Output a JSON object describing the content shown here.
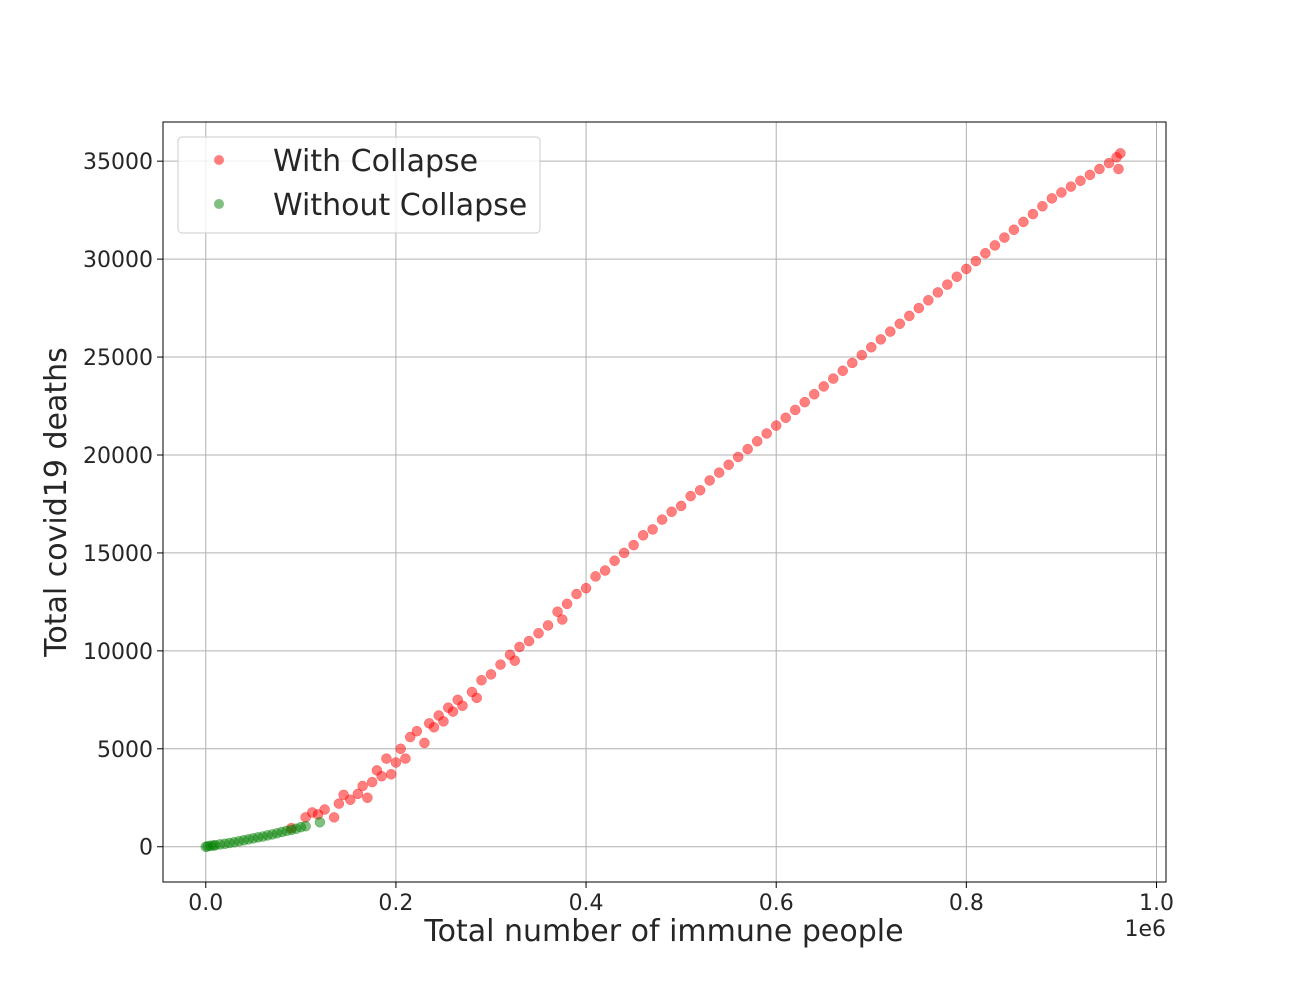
{
  "chart_data": {
    "type": "scatter",
    "title": "",
    "xlabel": "Total number of immune people",
    "ylabel": "Total covid19 deaths",
    "x_offset_label": "1e6",
    "xlim": [
      -0.045,
      1.01
    ],
    "ylim": [
      -1800,
      37000
    ],
    "x_ticks": [
      0.0,
      0.2,
      0.4,
      0.6,
      0.8,
      1.0
    ],
    "x_tick_labels": [
      "0.0",
      "0.2",
      "0.4",
      "0.6",
      "0.8",
      "1.0"
    ],
    "y_ticks": [
      0,
      5000,
      10000,
      15000,
      20000,
      25000,
      30000,
      35000
    ],
    "y_tick_labels": [
      "0",
      "5000",
      "10000",
      "15000",
      "20000",
      "25000",
      "30000",
      "35000"
    ],
    "grid": true,
    "legend_position": "top-left",
    "series": [
      {
        "name": "With Collapse",
        "color": "#ff0000",
        "alpha": 0.5,
        "points": [
          [
            0.09,
            950
          ],
          [
            0.105,
            1500
          ],
          [
            0.112,
            1750
          ],
          [
            0.118,
            1650
          ],
          [
            0.125,
            1900
          ],
          [
            0.135,
            1500
          ],
          [
            0.14,
            2200
          ],
          [
            0.145,
            2650
          ],
          [
            0.152,
            2400
          ],
          [
            0.16,
            2700
          ],
          [
            0.165,
            3100
          ],
          [
            0.17,
            2500
          ],
          [
            0.175,
            3300
          ],
          [
            0.18,
            3900
          ],
          [
            0.185,
            3600
          ],
          [
            0.19,
            4500
          ],
          [
            0.195,
            3700
          ],
          [
            0.2,
            4300
          ],
          [
            0.205,
            5000
          ],
          [
            0.21,
            4500
          ],
          [
            0.215,
            5600
          ],
          [
            0.222,
            5900
          ],
          [
            0.23,
            5300
          ],
          [
            0.235,
            6300
          ],
          [
            0.24,
            6100
          ],
          [
            0.245,
            6700
          ],
          [
            0.25,
            6400
          ],
          [
            0.255,
            7100
          ],
          [
            0.26,
            6900
          ],
          [
            0.265,
            7500
          ],
          [
            0.27,
            7200
          ],
          [
            0.28,
            7900
          ],
          [
            0.285,
            7600
          ],
          [
            0.29,
            8500
          ],
          [
            0.3,
            8800
          ],
          [
            0.31,
            9300
          ],
          [
            0.32,
            9800
          ],
          [
            0.325,
            9500
          ],
          [
            0.33,
            10200
          ],
          [
            0.34,
            10500
          ],
          [
            0.35,
            10900
          ],
          [
            0.36,
            11300
          ],
          [
            0.37,
            12000
          ],
          [
            0.375,
            11600
          ],
          [
            0.38,
            12400
          ],
          [
            0.39,
            12900
          ],
          [
            0.4,
            13200
          ],
          [
            0.41,
            13800
          ],
          [
            0.42,
            14100
          ],
          [
            0.43,
            14600
          ],
          [
            0.44,
            15000
          ],
          [
            0.45,
            15400
          ],
          [
            0.46,
            15900
          ],
          [
            0.47,
            16200
          ],
          [
            0.48,
            16700
          ],
          [
            0.49,
            17100
          ],
          [
            0.5,
            17400
          ],
          [
            0.51,
            17900
          ],
          [
            0.52,
            18200
          ],
          [
            0.53,
            18700
          ],
          [
            0.54,
            19100
          ],
          [
            0.55,
            19500
          ],
          [
            0.56,
            19900
          ],
          [
            0.57,
            20300
          ],
          [
            0.58,
            20700
          ],
          [
            0.59,
            21100
          ],
          [
            0.6,
            21500
          ],
          [
            0.61,
            21900
          ],
          [
            0.62,
            22300
          ],
          [
            0.63,
            22700
          ],
          [
            0.64,
            23100
          ],
          [
            0.65,
            23500
          ],
          [
            0.66,
            23900
          ],
          [
            0.67,
            24300
          ],
          [
            0.68,
            24700
          ],
          [
            0.69,
            25100
          ],
          [
            0.7,
            25500
          ],
          [
            0.71,
            25900
          ],
          [
            0.72,
            26300
          ],
          [
            0.73,
            26700
          ],
          [
            0.74,
            27100
          ],
          [
            0.75,
            27500
          ],
          [
            0.76,
            27900
          ],
          [
            0.77,
            28300
          ],
          [
            0.78,
            28700
          ],
          [
            0.79,
            29100
          ],
          [
            0.8,
            29500
          ],
          [
            0.81,
            29900
          ],
          [
            0.82,
            30300
          ],
          [
            0.83,
            30700
          ],
          [
            0.84,
            31100
          ],
          [
            0.85,
            31500
          ],
          [
            0.86,
            31900
          ],
          [
            0.87,
            32300
          ],
          [
            0.88,
            32700
          ],
          [
            0.89,
            33100
          ],
          [
            0.9,
            33400
          ],
          [
            0.91,
            33700
          ],
          [
            0.92,
            34000
          ],
          [
            0.93,
            34300
          ],
          [
            0.94,
            34600
          ],
          [
            0.95,
            34900
          ],
          [
            0.958,
            35200
          ],
          [
            0.96,
            34600
          ],
          [
            0.962,
            35400
          ]
        ]
      },
      {
        "name": "Without Collapse",
        "color": "#008000",
        "alpha": 0.5,
        "points": [
          [
            0.0,
            0
          ],
          [
            0.002,
            20
          ],
          [
            0.005,
            50
          ],
          [
            0.008,
            60
          ],
          [
            0.01,
            80
          ],
          [
            0.015,
            120
          ],
          [
            0.02,
            150
          ],
          [
            0.025,
            190
          ],
          [
            0.03,
            230
          ],
          [
            0.035,
            280
          ],
          [
            0.04,
            330
          ],
          [
            0.045,
            380
          ],
          [
            0.05,
            430
          ],
          [
            0.055,
            480
          ],
          [
            0.06,
            520
          ],
          [
            0.065,
            580
          ],
          [
            0.07,
            630
          ],
          [
            0.075,
            690
          ],
          [
            0.08,
            750
          ],
          [
            0.085,
            810
          ],
          [
            0.09,
            860
          ],
          [
            0.095,
            920
          ],
          [
            0.1,
            1000
          ],
          [
            0.105,
            1050
          ],
          [
            0.12,
            1250
          ]
        ]
      }
    ]
  }
}
